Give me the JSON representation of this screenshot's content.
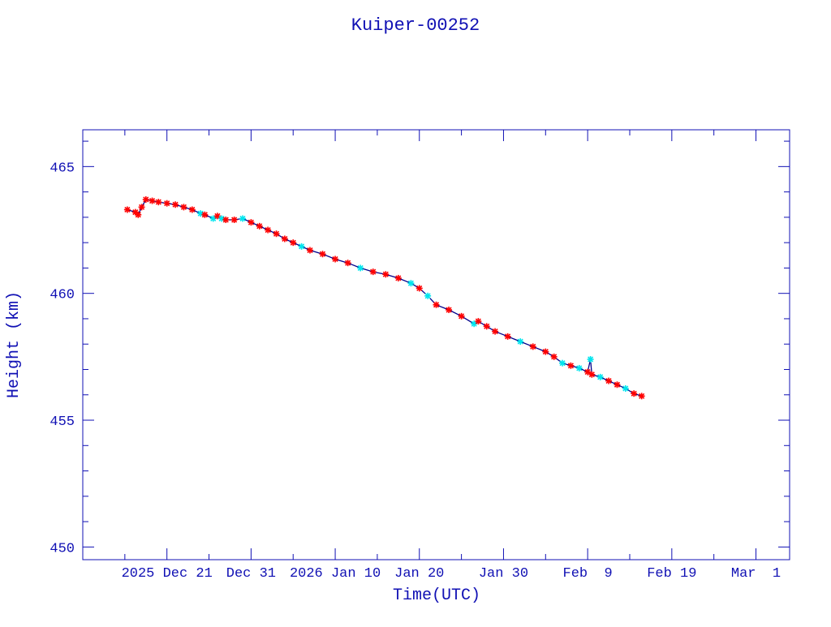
{
  "chart_data": {
    "type": "scatter",
    "title": "Kuiper-00252",
    "xlabel": "Time(UTC)",
    "ylabel": "Height (km)",
    "xlim": [
      "2025-12-11T00:00",
      "2026-03-05T00:00"
    ],
    "ylim": [
      449.5,
      466.45
    ],
    "x_ticks": [
      {
        "date": "2025-12-21",
        "label": "2025 Dec 21"
      },
      {
        "date": "2025-12-31",
        "label": "Dec 31"
      },
      {
        "date": "2026-01-10",
        "label": "2026 Jan 10"
      },
      {
        "date": "2026-01-20",
        "label": "Jan 20"
      },
      {
        "date": "2026-01-30",
        "label": "Jan 30"
      },
      {
        "date": "2026-02-09",
        "label": "Feb  9"
      },
      {
        "date": "2026-02-19",
        "label": "Feb 19"
      },
      {
        "date": "2026-03-01",
        "label": "Mar  1"
      }
    ],
    "y_ticks": [
      {
        "value": 450,
        "label": "450"
      },
      {
        "value": 455,
        "label": "455"
      },
      {
        "value": 460,
        "label": "460"
      },
      {
        "value": 465,
        "label": "465"
      }
    ],
    "grid": false,
    "colors": {
      "axis": "#1010b4",
      "line": "#00008b",
      "marker_primary": "#ff0000",
      "marker_secondary": "#00e5ee"
    },
    "points": [
      [
        "2025-12-16T07:00",
        463.3,
        "red"
      ],
      [
        "2025-12-17T06:00",
        463.2,
        "red"
      ],
      [
        "2025-12-17T14:00",
        463.1,
        "red"
      ],
      [
        "2025-12-18T00:00",
        463.4,
        "red"
      ],
      [
        "2025-12-18T12:00",
        463.7,
        "red"
      ],
      [
        "2025-12-19T06:00",
        463.65,
        "red"
      ],
      [
        "2025-12-20T00:00",
        463.6,
        "red"
      ],
      [
        "2025-12-21T00:00",
        463.55,
        "red"
      ],
      [
        "2025-12-22T00:00",
        463.5,
        "red"
      ],
      [
        "2025-12-23T00:00",
        463.4,
        "red"
      ],
      [
        "2025-12-24T00:00",
        463.3,
        "red"
      ],
      [
        "2025-12-25T00:00",
        463.15,
        "cyan"
      ],
      [
        "2025-12-25T12:00",
        463.1,
        "red"
      ],
      [
        "2025-12-26T12:00",
        462.95,
        "cyan"
      ],
      [
        "2025-12-27T00:00",
        463.05,
        "red"
      ],
      [
        "2025-12-27T12:00",
        462.95,
        "cyan"
      ],
      [
        "2025-12-28T00:00",
        462.9,
        "red"
      ],
      [
        "2025-12-29T00:00",
        462.9,
        "red"
      ],
      [
        "2025-12-30T00:00",
        462.95,
        "cyan"
      ],
      [
        "2025-12-31T00:00",
        462.8,
        "red"
      ],
      [
        "2026-01-01T00:00",
        462.65,
        "red"
      ],
      [
        "2026-01-02T00:00",
        462.5,
        "red"
      ],
      [
        "2026-01-03T00:00",
        462.35,
        "red"
      ],
      [
        "2026-01-04T00:00",
        462.15,
        "red"
      ],
      [
        "2026-01-05T00:00",
        462.0,
        "red"
      ],
      [
        "2026-01-06T00:00",
        461.85,
        "cyan"
      ],
      [
        "2026-01-07T00:00",
        461.7,
        "red"
      ],
      [
        "2026-01-08T12:00",
        461.55,
        "red"
      ],
      [
        "2026-01-10T00:00",
        461.35,
        "red"
      ],
      [
        "2026-01-11T12:00",
        461.2,
        "red"
      ],
      [
        "2026-01-13T00:00",
        461.0,
        "cyan"
      ],
      [
        "2026-01-14T12:00",
        460.85,
        "red"
      ],
      [
        "2026-01-16T00:00",
        460.75,
        "red"
      ],
      [
        "2026-01-17T12:00",
        460.6,
        "red"
      ],
      [
        "2026-01-19T00:00",
        460.4,
        "cyan"
      ],
      [
        "2026-01-20T00:00",
        460.2,
        "red"
      ],
      [
        "2026-01-21T00:00",
        459.9,
        "cyan"
      ],
      [
        "2026-01-22T00:00",
        459.55,
        "red"
      ],
      [
        "2026-01-23T12:00",
        459.35,
        "red"
      ],
      [
        "2026-01-25T00:00",
        459.1,
        "red"
      ],
      [
        "2026-01-26T12:00",
        458.8,
        "cyan"
      ],
      [
        "2026-01-27T00:00",
        458.9,
        "red"
      ],
      [
        "2026-01-28T00:00",
        458.7,
        "red"
      ],
      [
        "2026-01-29T00:00",
        458.5,
        "red"
      ],
      [
        "2026-01-30T12:00",
        458.3,
        "red"
      ],
      [
        "2026-02-01T00:00",
        458.1,
        "cyan"
      ],
      [
        "2026-02-02T12:00",
        457.9,
        "red"
      ],
      [
        "2026-02-04T00:00",
        457.7,
        "red"
      ],
      [
        "2026-02-05T00:00",
        457.5,
        "red"
      ],
      [
        "2026-02-06T00:00",
        457.25,
        "cyan"
      ],
      [
        "2026-02-07T00:00",
        457.15,
        "red"
      ],
      [
        "2026-02-08T00:00",
        457.05,
        "cyan"
      ],
      [
        "2026-02-09T00:00",
        456.9,
        "red"
      ],
      [
        "2026-02-09T08:00",
        457.4,
        "cyan"
      ],
      [
        "2026-02-09T12:00",
        456.8,
        "red"
      ],
      [
        "2026-02-10T12:00",
        456.7,
        "cyan"
      ],
      [
        "2026-02-11T12:00",
        456.55,
        "red"
      ],
      [
        "2026-02-12T12:00",
        456.4,
        "red"
      ],
      [
        "2026-02-13T12:00",
        456.25,
        "cyan"
      ],
      [
        "2026-02-14T12:00",
        456.05,
        "red"
      ],
      [
        "2026-02-15T10:00",
        455.95,
        "red"
      ]
    ]
  }
}
